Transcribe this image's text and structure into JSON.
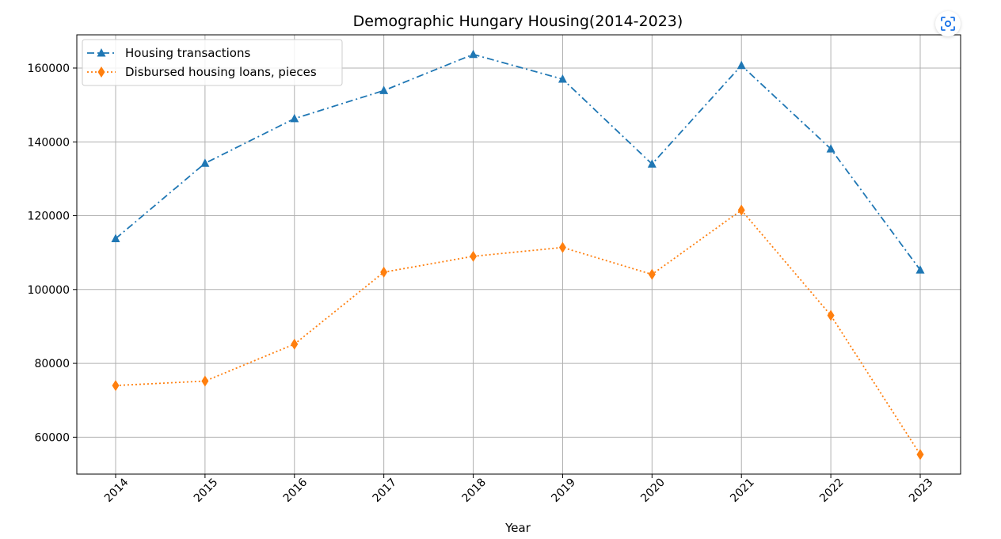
{
  "chart_data": {
    "type": "line",
    "title": "Demographic Hungary Housing(2014-2023)",
    "xlabel": "Year",
    "ylabel": "",
    "x": [
      "2014",
      "2015",
      "2016",
      "2017",
      "2018",
      "2019",
      "2020",
      "2021",
      "2022",
      "2023"
    ],
    "ylim": [
      50000,
      169000
    ],
    "yticks": [
      60000,
      80000,
      100000,
      120000,
      140000,
      160000
    ],
    "grid": true,
    "legend_position": "top-left",
    "series": [
      {
        "name": "Housing transactions",
        "values": [
          113800,
          134200,
          146300,
          153900,
          163700,
          157000,
          134000,
          160700,
          138100,
          105300
        ],
        "color": "#1f77b4",
        "line_style": "dash-dot",
        "marker": "triangle-up"
      },
      {
        "name": "Disbursed housing loans, pieces",
        "values": [
          74000,
          75200,
          85200,
          104700,
          109000,
          111400,
          104100,
          121500,
          93000,
          55300
        ],
        "color": "#ff7f0e",
        "line_style": "dotted",
        "marker": "thin-diamond"
      }
    ]
  },
  "toolbar": {
    "scan_icon": "scan-focus-icon",
    "accent": "#1a73e8"
  }
}
